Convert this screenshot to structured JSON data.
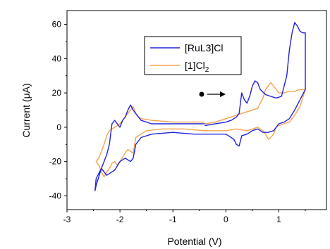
{
  "chart_data": {
    "type": "line",
    "xlabel": "Potential (V)",
    "ylabel_prefix": "Current (",
    "ylabel_mu": "μ",
    "ylabel_suffix": "A)",
    "xlim": [
      -3,
      1.9
    ],
    "ylim": [
      -48,
      68
    ],
    "xticks": [
      -3,
      -2,
      -1,
      0,
      1
    ],
    "yticks": [
      -40,
      -20,
      0,
      20,
      40,
      60
    ],
    "grid": false,
    "legend_position": "top-right",
    "annotation": "scan-direction arrow pointing right near (-0.4, 20)",
    "series": [
      {
        "name": "[RuL3]Cl",
        "color": "#2222dd",
        "x": [
          -0.4,
          -0.2,
          0.0,
          0.1,
          0.2,
          0.25,
          0.3,
          0.35,
          0.4,
          0.45,
          0.5,
          0.55,
          0.6,
          0.65,
          0.75,
          0.85,
          0.95,
          1.05,
          1.15,
          1.2,
          1.25,
          1.3,
          1.35,
          1.4,
          1.45,
          1.5,
          1.5,
          1.45,
          1.4,
          1.3,
          1.2,
          1.1,
          1.0,
          0.95,
          0.9,
          0.8,
          0.7,
          0.6,
          0.5,
          0.4,
          0.3,
          0.25,
          0.2,
          0.15,
          0.05,
          0.0,
          -0.2,
          -0.6,
          -1.0,
          -1.4,
          -1.6,
          -1.7,
          -1.75,
          -1.8,
          -1.85,
          -1.9,
          -2.0,
          -2.1,
          -2.15,
          -2.2,
          -2.25,
          -2.3,
          -2.35,
          -2.45,
          -2.47,
          -2.45,
          -2.35,
          -2.3,
          -2.25,
          -2.2,
          -2.15,
          -2.1,
          -2.05,
          -2.0,
          -1.95,
          -1.9,
          -1.85,
          -1.8,
          -1.75,
          -1.7,
          -1.6,
          -1.4,
          -1.0,
          -0.6,
          -0.4
        ],
        "y": [
          1,
          2,
          3,
          4,
          6,
          8,
          20,
          16,
          14,
          18,
          24,
          27,
          26,
          22,
          19,
          18,
          17,
          18,
          30,
          45,
          55,
          61,
          59,
          56,
          55,
          55,
          22,
          19,
          16,
          10,
          5,
          3,
          2,
          0,
          -2,
          -3,
          -3,
          -1,
          -2,
          -4,
          -5,
          -11,
          -10,
          -7,
          -5,
          -4,
          -4,
          -4,
          -3,
          -4,
          -6,
          -10,
          -18,
          -20,
          -19,
          -18,
          -20,
          -25,
          -26,
          -27,
          -28,
          -26,
          -24,
          -34,
          -37,
          -30,
          -24,
          -20,
          -16,
          -10,
          2,
          4,
          2,
          0,
          4,
          6,
          10,
          13,
          10,
          8,
          4,
          2,
          2,
          2,
          2
        ]
      },
      {
        "name": "[1]Cl2",
        "color": "#f5a24a",
        "x": [
          -0.4,
          -0.2,
          0.0,
          0.2,
          0.4,
          0.6,
          0.65,
          0.7,
          0.75,
          0.8,
          0.85,
          0.9,
          0.95,
          1.0,
          1.1,
          1.2,
          1.3,
          1.4,
          1.5,
          1.5,
          1.4,
          1.3,
          1.2,
          1.1,
          1.0,
          0.95,
          0.9,
          0.85,
          0.8,
          0.75,
          0.7,
          0.6,
          0.4,
          0.2,
          0.0,
          -0.4,
          -0.8,
          -1.2,
          -1.5,
          -1.6,
          -1.7,
          -1.75,
          -1.8,
          -1.85,
          -1.9,
          -2.0,
          -2.05,
          -2.1,
          -2.15,
          -2.2,
          -2.25,
          -2.3,
          -2.35,
          -2.4,
          -2.45,
          -2.45,
          -2.4,
          -2.35,
          -2.3,
          -2.25,
          -2.2,
          -2.15,
          -2.1,
          -2.05,
          -2.0,
          -1.95,
          -1.9,
          -1.85,
          -1.8,
          -1.75,
          -1.7,
          -1.65,
          -1.6,
          -1.4,
          -1.0,
          -0.6,
          -0.4
        ],
        "y": [
          2,
          3,
          5,
          7,
          9,
          11,
          14,
          17,
          22,
          24,
          26,
          24,
          22,
          20,
          20,
          21,
          21,
          22,
          22,
          22,
          12,
          7,
          3,
          2,
          1,
          0,
          -4,
          -6,
          -7,
          -4,
          -2,
          0,
          -2,
          -1,
          -2,
          -2,
          -1,
          -1,
          -2,
          -4,
          -6,
          -15,
          -14,
          -13,
          -15,
          -20,
          -22,
          -20,
          -21,
          -24,
          -26,
          -29,
          -26,
          -22,
          -20,
          -20,
          -18,
          -14,
          -10,
          -5,
          -2,
          -1,
          0,
          1,
          2,
          4,
          6,
          8,
          10,
          12,
          8,
          6,
          5,
          4,
          3,
          3,
          3
        ]
      }
    ],
    "legend": {
      "items": [
        {
          "label": "[RuL3]Cl",
          "color": "#2222dd"
        },
        {
          "label_main": "[1]Cl",
          "label_sub": "2",
          "color": "#f5a24a"
        }
      ]
    }
  }
}
